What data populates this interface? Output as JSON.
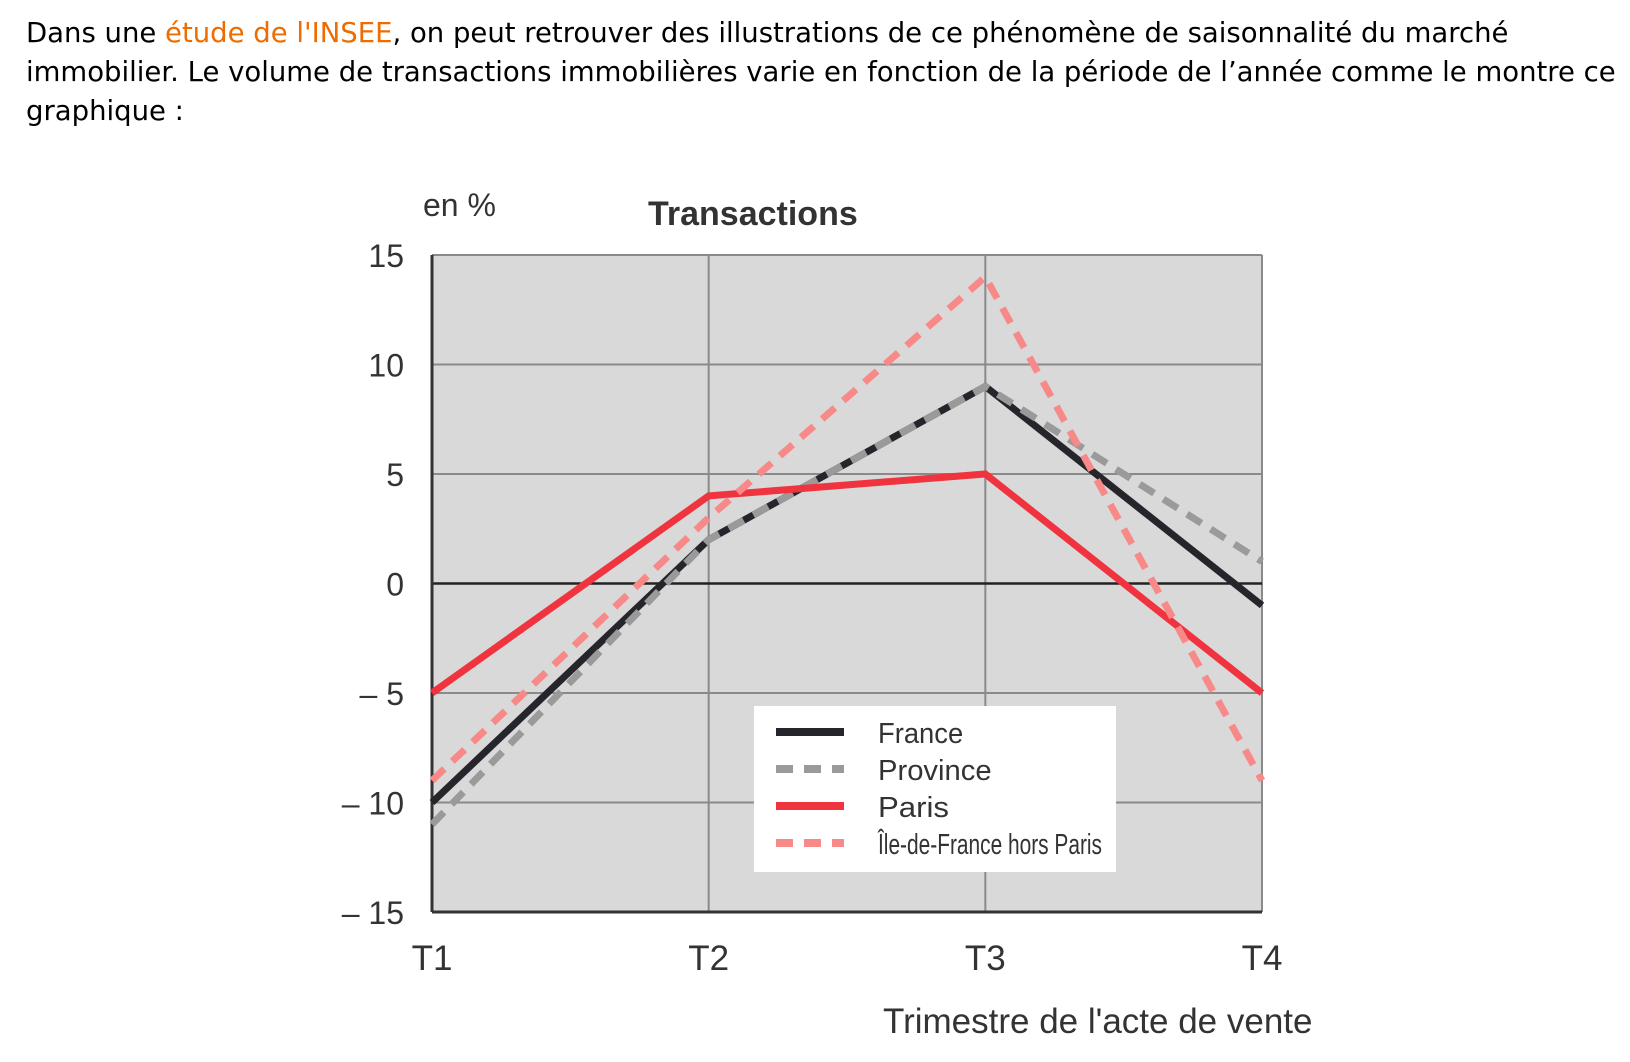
{
  "intro": {
    "before_link": "Dans une ",
    "link_text": "étude de l'INSEE",
    "after_link": ", on peut retrouver des illustrations de ce phénomène de saisonnalité du marché immobilier. Le volume de transactions immobilières varie en fonction de la période de l’année comme le montre ce graphique :"
  },
  "chart_data": {
    "type": "line",
    "title": "Transactions",
    "ylabel": "en %",
    "xlabel": "Trimestre de l'acte de vente",
    "categories": [
      "T1",
      "T2",
      "T3",
      "T4"
    ],
    "ylim": [
      -15,
      15
    ],
    "yticks": [
      15,
      10,
      5,
      0,
      -5,
      -10,
      -15
    ],
    "ytick_labels": [
      "15",
      "10",
      "5",
      "0",
      "– 5",
      "– 10",
      "– 15"
    ],
    "grid": true,
    "legend_position": "bottom-right",
    "plot_background": "#d9d9d9",
    "series": [
      {
        "name": "France",
        "values": [
          -10,
          2,
          9,
          -1
        ],
        "color": "#25252b",
        "dashed": false
      },
      {
        "name": "Province",
        "values": [
          -11,
          2,
          9,
          1
        ],
        "color": "#9a9a9a",
        "dashed": true
      },
      {
        "name": "Paris",
        "values": [
          -5,
          4,
          5,
          -5
        ],
        "color": "#f0343f",
        "dashed": false
      },
      {
        "name": "Île-de-France hors Paris",
        "values": [
          -9,
          3,
          14,
          -9
        ],
        "color": "#f78a88",
        "dashed": true
      }
    ]
  }
}
